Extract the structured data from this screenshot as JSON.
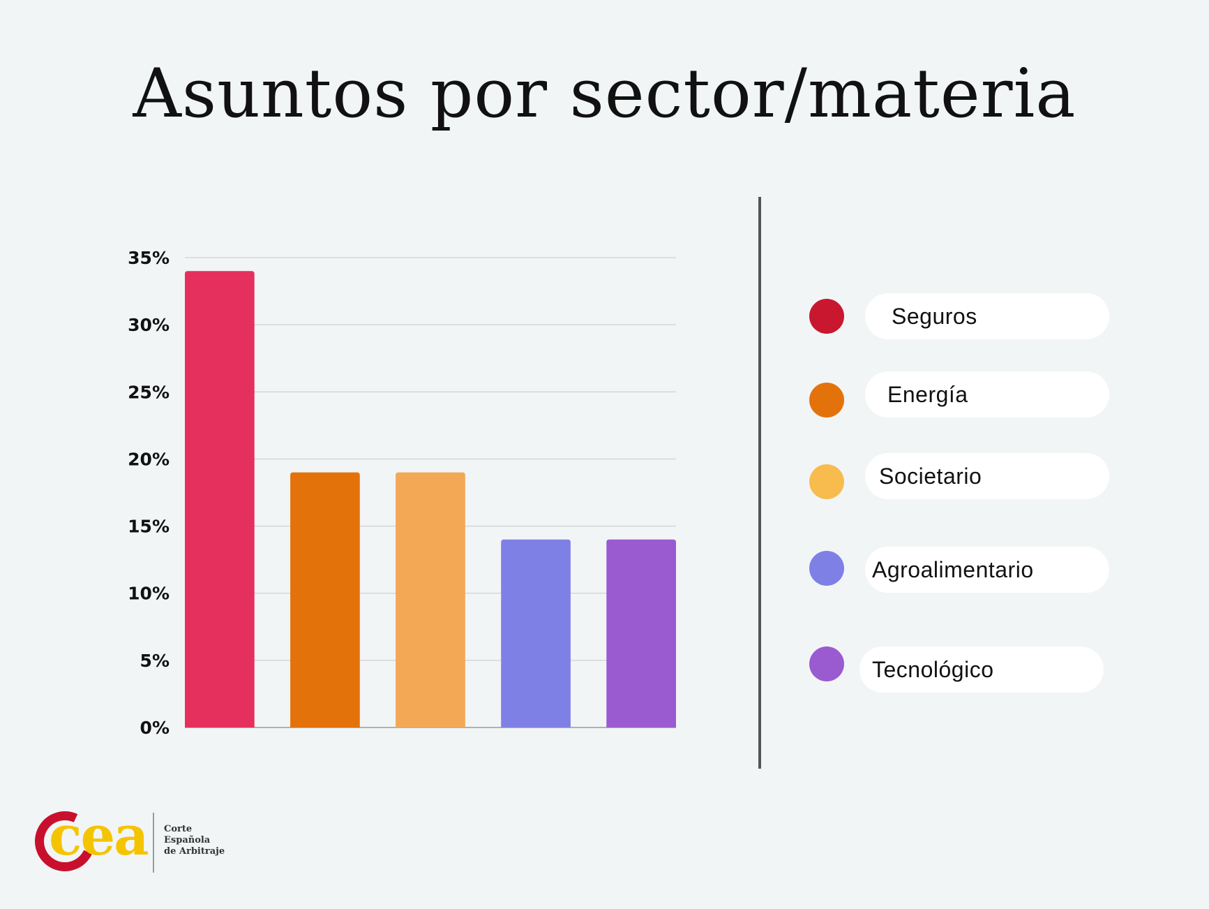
{
  "colors": {
    "background": "#f2f5f6",
    "seguros": "#e5305e",
    "energia": "#e4720b",
    "societario": "#f3a855",
    "agroalimentario": "#7f80e6",
    "tecnologico": "#9a5ad0",
    "grid": "#c8c8c8",
    "divider": "#555555",
    "logo_red": "#c8102e",
    "logo_yellow": "#f5c400"
  },
  "chart_data": {
    "type": "bar",
    "title": "Asuntos por sector/materia",
    "categories": [
      "Seguros",
      "Energía",
      "Societario",
      "Agroalimentario",
      "Tecnológico"
    ],
    "values": [
      34,
      19,
      19,
      14,
      14
    ],
    "unit": "%",
    "ylim": [
      0,
      35
    ],
    "yticks": [
      0,
      5,
      10,
      15,
      20,
      25,
      30,
      35
    ],
    "ytick_labels": [
      "0%",
      "5%",
      "10%",
      "15%",
      "20%",
      "25%",
      "30%",
      "35%"
    ],
    "grid": true,
    "legend_placement": "right",
    "bar_colors": [
      "#e5305e",
      "#e4720b",
      "#f3a855",
      "#7f80e6",
      "#9a5ad0"
    ]
  },
  "legend": {
    "items": [
      {
        "label": "Seguros",
        "dot_color": "#c8172f"
      },
      {
        "label": "Energía",
        "dot_color": "#e4720b"
      },
      {
        "label": "Societario",
        "dot_color": "#f7bc4d"
      },
      {
        "label": "Agroalimentario",
        "dot_color": "#7f80e6"
      },
      {
        "label": "Tecnológico",
        "dot_color": "#9a5ad0"
      }
    ]
  },
  "logo": {
    "wordmark": "cea",
    "line1": "Corte",
    "line2": "Española",
    "line3": "de Arbitraje"
  }
}
